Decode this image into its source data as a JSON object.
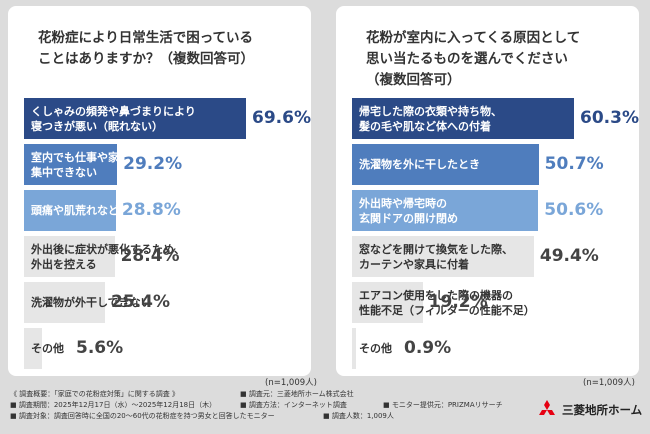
{
  "colors": {
    "background": "#dcdcdc",
    "card": "#ffffff",
    "rank1": "#2b4a87",
    "rank2": "#4f7dbd",
    "rank3": "#7aa6d8",
    "rank_other": "#e6e6e6",
    "value_dark": "#2b4a87",
    "value_mid": "#4f7dbd",
    "value_light": "#7aa6d8",
    "value_gray": "#444444"
  },
  "chart_data": [
    {
      "type": "bar",
      "title": "花粉症により日常生活で困っている\nことはありますか？（複数回答可）",
      "unit": "%",
      "sample_note": "(n=1,009人)",
      "categories": [
        "くしゃみの頻発や鼻づまりにより\n寝つきが悪い（眠れない）",
        "室内でも仕事や家事に\n集中できない",
        "頭痛や肌荒れなど体調の悪化",
        "外出後に症状が悪化するため、\n外出を控える",
        "洗濯物が外干しできない",
        "その他"
      ],
      "values": [
        69.6,
        29.2,
        28.8,
        28.4,
        25.4,
        5.6
      ],
      "value_labels": [
        "69.6%",
        "29.2%",
        "28.8%",
        "28.4%",
        "25.4%",
        "5.6%"
      ]
    },
    {
      "type": "bar",
      "title": "花粉が室内に入ってくる原因として\n思い当たるものを選んでください\n（複数回答可）",
      "unit": "%",
      "sample_note": "(n=1,009人)",
      "categories": [
        "帰宅した際の衣類や持ち物、\n髪の毛や肌など体への付着",
        "洗濯物を外に干したとき",
        "外出時や帰宅時の\n玄関ドアの開け閉め",
        "窓などを開けて換気をした際、\nカーテンや家具に付着",
        "エアコン使用をした際の機器の\n性能不足（フィルターの性能不足）",
        "その他"
      ],
      "values": [
        60.3,
        50.7,
        50.6,
        49.4,
        19.2,
        0.9
      ],
      "value_labels": [
        "60.3%",
        "50.7%",
        "50.6%",
        "49.4%",
        "19.2%",
        "0.9%"
      ]
    }
  ],
  "footer": {
    "survey_overview": "《 調査概要：「家庭での花粉症対策」に関する調査 》",
    "investigator": "■ 調査元：三菱地所ホーム株式会社",
    "period": "■ 調査期間：2025年12月17日（水）～2025年12月18日（木）",
    "method": "■ 調査方法：インターネット調査",
    "monitor": "■ モニター提供元：PRIZMAリサーチ",
    "target": "■ 調査対象：調査回答時に全国の20～60代の花粉症を持つ男女と回答したモニター",
    "respondents": "■ 調査人数：1,009人"
  },
  "logo": {
    "icon": "mitsubishi-diamonds-icon",
    "color": "#e60012",
    "text": "三菱地所ホーム"
  }
}
